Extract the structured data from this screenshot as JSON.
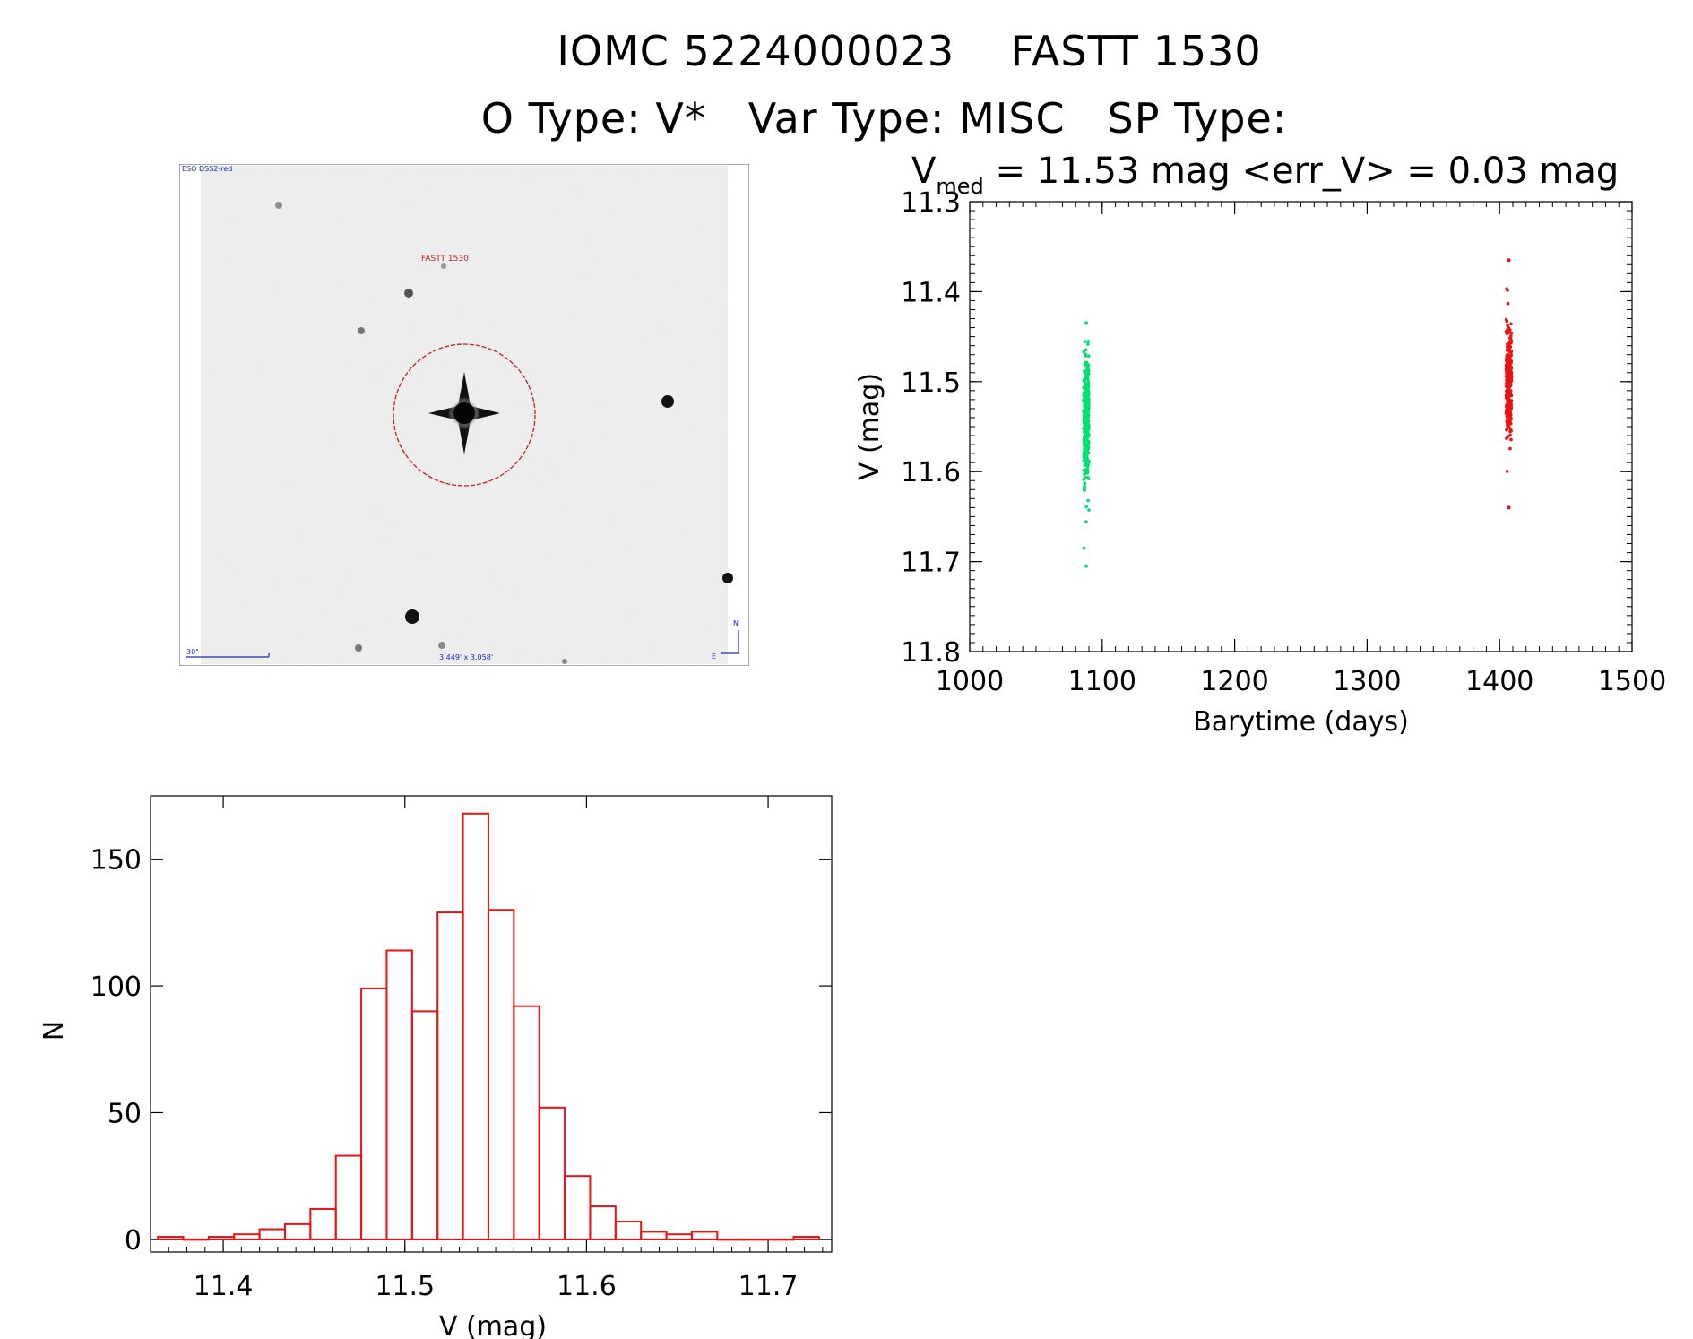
{
  "title": "IOMC 5224000023    FASTT 1530",
  "subtitle": "O Type: V*   Var Type: MISC   SP Type:",
  "finder": {
    "survey_label": "ESO DSS2-red",
    "target_label": "FASTT 1530",
    "scale_label": "30\"",
    "fov_label": "3.449' x 3.058'",
    "north_label": "N",
    "east_label": "E",
    "marker_color": "#c02020",
    "compass_color": "#1a2db0"
  },
  "chart_data": [
    {
      "type": "scatter",
      "title_main": "V",
      "title_sub": "med",
      "title_rest": " = 11.53 mag <err_V> = 0.03 mag",
      "xlabel": "Barytime (days)",
      "ylabel": "V (mag)",
      "xlim": [
        1000,
        1500
      ],
      "ylim": [
        11.3,
        11.8
      ],
      "y_inverted": true,
      "xticks": [
        "1000",
        "1100",
        "1200",
        "1300",
        "1400",
        "1500"
      ],
      "yticks": [
        "11.3",
        "11.4",
        "11.5",
        "11.6",
        "11.7",
        "11.8"
      ],
      "series": [
        {
          "color": "#00e070",
          "x": 1088,
          "points": 320,
          "v_min": 11.435,
          "v_max": 11.705,
          "v_center": 11.545,
          "v_spread": 0.085
        },
        {
          "color": "#ee1111",
          "x": 1407,
          "points": 320,
          "v_min": 11.365,
          "v_max": 11.64,
          "v_center": 11.5,
          "v_spread": 0.07
        }
      ]
    },
    {
      "type": "bar",
      "subtype": "histogram",
      "xlabel": "V (mag)",
      "ylabel": "N",
      "xlim": [
        11.36,
        11.735
      ],
      "ylim": [
        -5,
        175
      ],
      "xticks": [
        "11.4",
        "11.5",
        "11.6",
        "11.7"
      ],
      "yticks": [
        "0",
        "50",
        "100",
        "150"
      ],
      "bin_width": 0.014,
      "bins_start": 11.364,
      "counts": [
        1,
        0,
        1,
        2,
        4,
        6,
        12,
        33,
        99,
        114,
        90,
        129,
        168,
        130,
        92,
        52,
        25,
        13,
        7,
        3,
        2,
        3,
        0,
        0,
        0,
        1
      ],
      "color": "#ee1111"
    }
  ]
}
